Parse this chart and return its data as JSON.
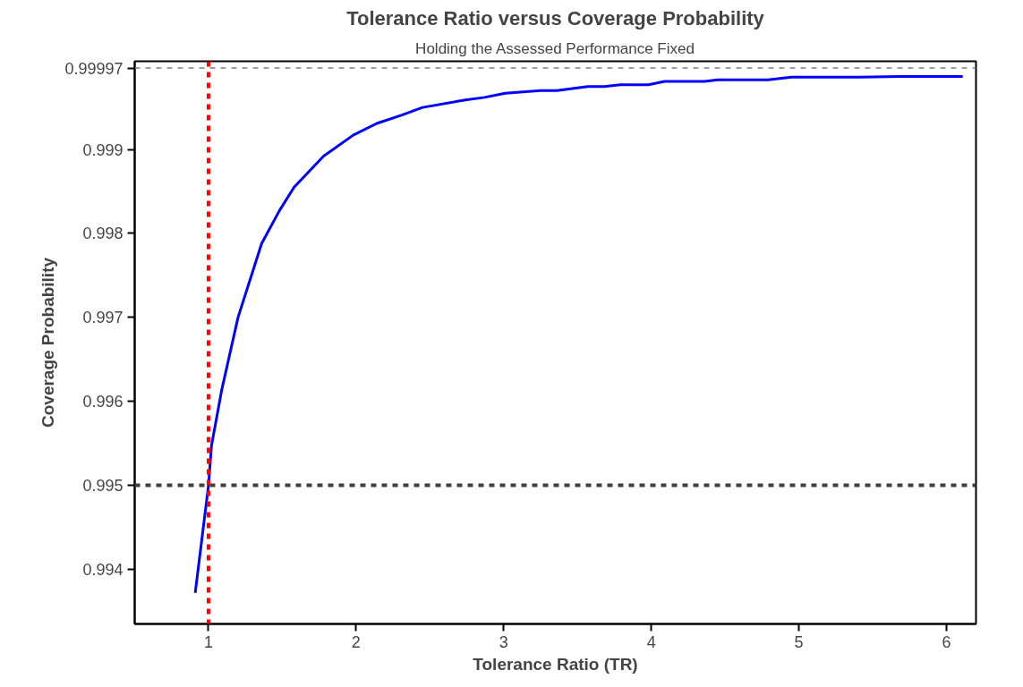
{
  "chart_data": {
    "type": "line",
    "title": "Tolerance Ratio versus Coverage Probability",
    "subtitle": "Holding the Assessed Performance Fixed",
    "xlabel": "Tolerance Ratio (TR)",
    "ylabel": "Coverage Probability",
    "xlim": [
      0.5,
      6.2
    ],
    "xticks": [
      1,
      2,
      3,
      4,
      5,
      6
    ],
    "ylim": [
      0.99335,
      1.00005
    ],
    "yticks": [
      0.994,
      0.995,
      0.996,
      0.997,
      0.998,
      0.999,
      0.99997
    ],
    "grid": false,
    "marker": "none",
    "line_style": "solid",
    "series": [
      {
        "color": "#0000ff",
        "x": [
          0.91,
          1.0,
          1.02,
          1.09,
          1.2,
          1.36,
          1.48,
          1.58,
          1.78,
          1.98,
          2.14,
          2.31,
          2.45,
          2.74,
          2.87,
          3.01,
          3.25,
          3.36,
          3.57,
          3.68,
          3.79,
          3.98,
          4.09,
          4.36,
          4.45,
          4.79,
          4.95,
          5.41,
          5.69,
          6.11
        ],
        "values": [
          0.99372,
          0.995,
          0.99547,
          0.99614,
          0.997,
          0.99788,
          0.99827,
          0.99855,
          0.99892,
          0.99917,
          0.99931,
          0.99941,
          0.9995,
          0.99959,
          0.99962,
          0.99967,
          0.9997,
          0.9997,
          0.99975,
          0.99975,
          0.99977,
          0.99977,
          0.99981,
          0.99981,
          0.99983,
          0.99983,
          0.99986,
          0.99986,
          0.99987,
          0.99987
        ]
      }
    ],
    "ref_lines": [
      {
        "axis": "y",
        "value": 0.99997,
        "color": "#808080",
        "line_style": "dashed"
      },
      {
        "axis": "y",
        "value": 0.995,
        "color": "#404040",
        "line_style": "dashed"
      },
      {
        "axis": "x",
        "value": 1,
        "color": "#ff0000",
        "line_style": "dashed"
      }
    ]
  }
}
